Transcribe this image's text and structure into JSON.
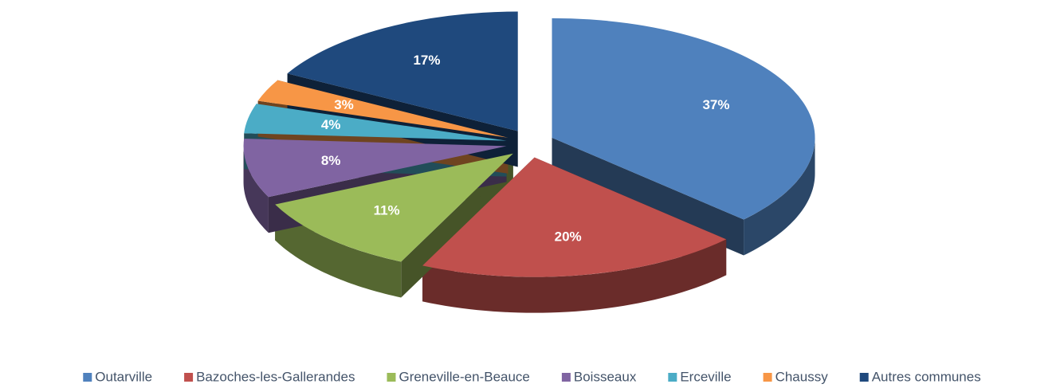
{
  "chart_data": {
    "type": "pie",
    "categories": [
      "Outarville",
      "Bazoches-les-Gallerandes",
      "Greneville-en-Beauce",
      "Boisseaux",
      "Erceville",
      "Chaussy",
      "Autres communes"
    ],
    "values": [
      37,
      20,
      11,
      8,
      4,
      3,
      17
    ],
    "value_labels": [
      "37%",
      "20%",
      "11%",
      "8%",
      "4%",
      "3%",
      "17%"
    ],
    "colors": [
      "#4f81bd",
      "#c0504d",
      "#9bbb59",
      "#8064a2",
      "#4bacc6",
      "#f79646",
      "#1f497d"
    ],
    "legend": "bottom"
  }
}
